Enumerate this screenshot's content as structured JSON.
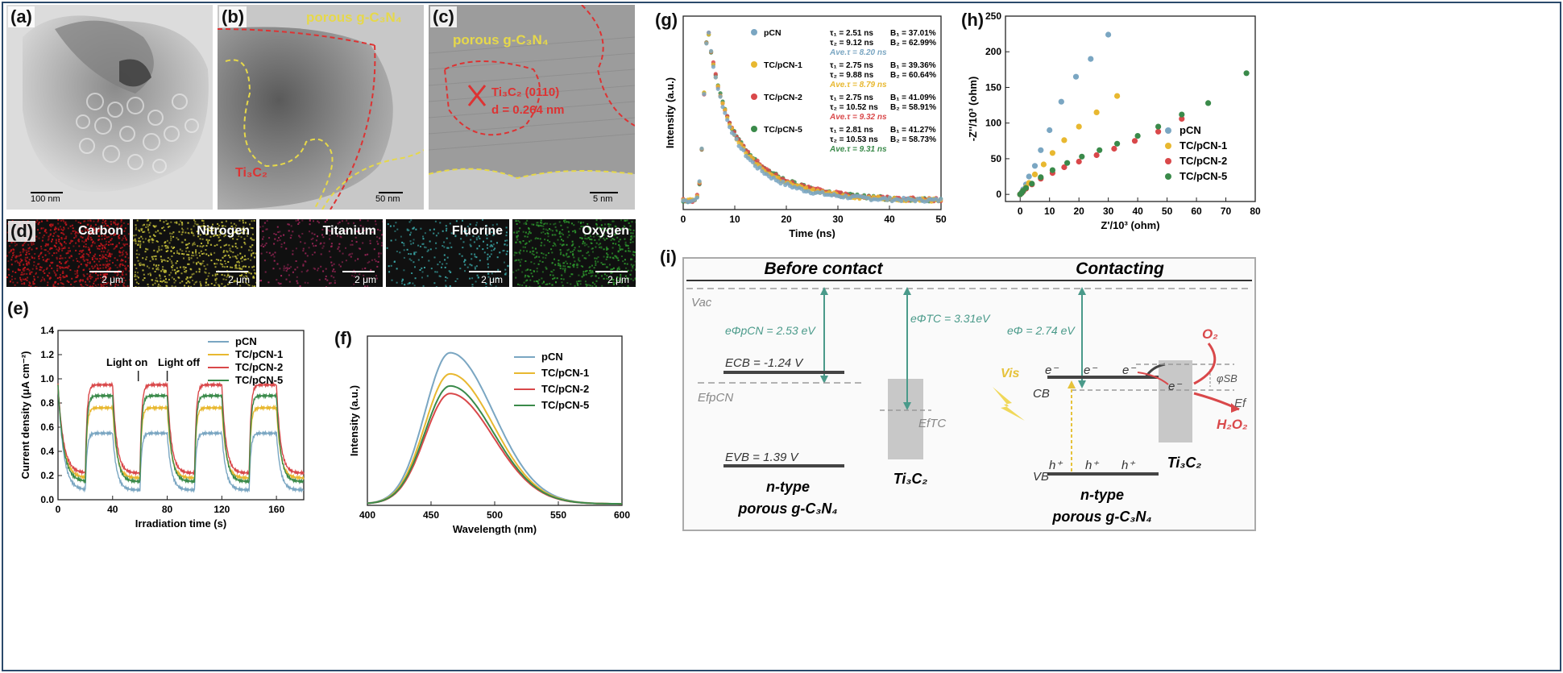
{
  "panels": {
    "a": {
      "label": "(a)",
      "scale": "100 nm"
    },
    "b": {
      "label": "(b)",
      "scale": "50 nm",
      "text_porous": "porous g-C₃N₄",
      "text_ti": "Ti₃C₂"
    },
    "c": {
      "label": "(c)",
      "scale": "5 nm",
      "text_porous": "porous g-C₃N₄",
      "text_lattice": "Ti₃C₂ (0110)",
      "text_d": "d = 0.264 nm"
    },
    "d": {
      "label": "(d)",
      "maps": [
        {
          "name": "Carbon",
          "color": "#c4161c",
          "scale": "2 μm"
        },
        {
          "name": "Nitrogen",
          "color": "#c8c23a",
          "scale": "2 μm"
        },
        {
          "name": "Titanium",
          "color": "#a0265a",
          "scale": "2 μm"
        },
        {
          "name": "Fluorine",
          "color": "#3aa8a8",
          "scale": "2 μm"
        },
        {
          "name": "Oxygen",
          "color": "#2e9a2e",
          "scale": "2 μm"
        }
      ]
    },
    "e": {
      "label": "(e)",
      "annotations": [
        "Light on",
        "Light off"
      ]
    },
    "f": {
      "label": "(f)"
    },
    "g": {
      "label": "(g)",
      "fits": [
        {
          "name": "pCN",
          "t1": "τ₁ = 2.51 ns",
          "b1": "B₁ = 37.01%",
          "t2": "τ₂ = 9.12 ns",
          "b2": "B₂ = 62.99%",
          "ave": "Ave.τ = 8.20 ns"
        },
        {
          "name": "TC/pCN-1",
          "t1": "τ₁ = 2.75 ns",
          "b1": "B₁ = 39.36%",
          "t2": "τ₂ = 9.88 ns",
          "b2": "B₂ = 60.64%",
          "ave": "Ave.τ = 8.79 ns"
        },
        {
          "name": "TC/pCN-2",
          "t1": "τ₁ = 2.75 ns",
          "b1": "B₁ = 41.09%",
          "t2": "τ₂ = 10.52 ns",
          "b2": "B₂ = 58.91%",
          "ave": "Ave.τ = 9.32 ns"
        },
        {
          "name": "TC/pCN-5",
          "t1": "τ₁ = 2.81 ns",
          "b1": "B₁ = 41.27%",
          "t2": "τ₂ = 10.53 ns",
          "b2": "B₂ = 58.73%",
          "ave": "Ave.τ = 9.31 ns"
        }
      ]
    },
    "h": {
      "label": "(h)"
    },
    "i": {
      "label": "(i)",
      "title_left": "Before contact",
      "title_right": "Contacting",
      "vac": "Vac",
      "phi_pcn": "eΦpCN = 2.53 eV",
      "phi_tc": "eΦTC = 3.31eV",
      "phi": "eΦ = 2.74 eV",
      "ecb": "ECB = -1.24 V",
      "efpcn": "EfpCN",
      "eftc": "EfTC",
      "evb": "EVB = 1.39 V",
      "ntype": "n-type",
      "porous": "porous g-C₃N₄",
      "ti3c2": "Ti₃C₂",
      "vis": "Vis",
      "cb": "CB",
      "vb": "VB",
      "o2": "O₂",
      "h2o2": "H₂O₂",
      "ef": "Ef",
      "phisb": "φSB",
      "electron": "e⁻",
      "hole": "h⁺"
    }
  },
  "colors": {
    "pCN": "#7aa6c2",
    "TC1": "#e8b830",
    "TC2": "#d9484a",
    "TC5": "#3a8a4a"
  },
  "chart_data": [
    {
      "panel": "e",
      "type": "line",
      "xlabel": "Irradiation time (s)",
      "ylabel": "Current density (μA cm⁻²)",
      "xlim": [
        0,
        180
      ],
      "ylim": [
        0,
        1.4
      ],
      "xticks": [
        0,
        40,
        80,
        120,
        160
      ],
      "yticks": [
        0.0,
        0.2,
        0.4,
        0.6,
        0.8,
        1.0,
        1.2,
        1.4
      ],
      "legend": [
        "pCN",
        "TC/pCN-1",
        "TC/pCN-2",
        "TC/pCN-5"
      ],
      "legend_position": "top-right",
      "on_levels": [
        0.55,
        0.76,
        0.95,
        0.86
      ],
      "light_on_time": 20,
      "period": 40
    },
    {
      "panel": "f",
      "type": "line",
      "xlabel": "Wavelength (nm)",
      "ylabel": "Intensity (a.u.)",
      "xlim": [
        400,
        600
      ],
      "xticks": [
        400,
        450,
        500,
        550,
        600
      ],
      "legend": [
        "pCN",
        "TC/pCN-1",
        "TC/pCN-2",
        "TC/pCN-5"
      ],
      "legend_position": "top-right",
      "peak_x": 465,
      "peaks": [
        1.0,
        0.86,
        0.73,
        0.78
      ]
    },
    {
      "panel": "g",
      "type": "scatter",
      "xlabel": "Time (ns)",
      "ylabel": "Intensity (a.u.)",
      "xlim": [
        0,
        50
      ],
      "xticks": [
        0,
        10,
        20,
        30,
        40,
        50
      ],
      "legend": [
        "pCN",
        "TC/pCN-1",
        "TC/pCN-2",
        "TC/pCN-5"
      ],
      "legend_position": "top-right"
    },
    {
      "panel": "h",
      "type": "scatter",
      "xlabel": "Z'/10³ (ohm)",
      "ylabel": "-Z''/10³ (ohm)",
      "xlim": [
        -5,
        80
      ],
      "ylim": [
        -10,
        250
      ],
      "xticks": [
        0,
        10,
        20,
        30,
        40,
        50,
        60,
        70,
        80
      ],
      "yticks": [
        0,
        50,
        100,
        150,
        200,
        250
      ],
      "legend": [
        "pCN",
        "TC/pCN-1",
        "TC/pCN-2",
        "TC/pCN-5"
      ],
      "legend_position": "bottom-right",
      "series": [
        {
          "name": "pCN",
          "x": [
            0,
            0.5,
            1,
            2,
            3,
            5,
            7,
            10,
            14,
            19,
            24,
            30
          ],
          "y": [
            0,
            3,
            7,
            14,
            25,
            40,
            62,
            90,
            130,
            165,
            190,
            224
          ]
        },
        {
          "name": "TC/pCN-1",
          "x": [
            0,
            0.5,
            1,
            2,
            3,
            5,
            8,
            11,
            15,
            20,
            26,
            33
          ],
          "y": [
            0,
            2,
            5,
            10,
            16,
            28,
            42,
            58,
            76,
            95,
            115,
            138
          ]
        },
        {
          "name": "TC/pCN-2",
          "x": [
            0,
            0.5,
            1,
            2,
            4,
            7,
            11,
            15,
            20,
            26,
            32,
            39,
            47,
            55
          ],
          "y": [
            0,
            2,
            4,
            8,
            14,
            22,
            30,
            38,
            46,
            55,
            64,
            75,
            88,
            106
          ]
        },
        {
          "name": "TC/pCN-5",
          "x": [
            0,
            0.5,
            1,
            2,
            4,
            7,
            11,
            16,
            21,
            27,
            33,
            40,
            47,
            55,
            64,
            77
          ],
          "y": [
            0,
            2,
            5,
            9,
            15,
            24,
            34,
            44,
            53,
            62,
            71,
            82,
            95,
            112,
            128,
            170
          ]
        }
      ]
    }
  ]
}
